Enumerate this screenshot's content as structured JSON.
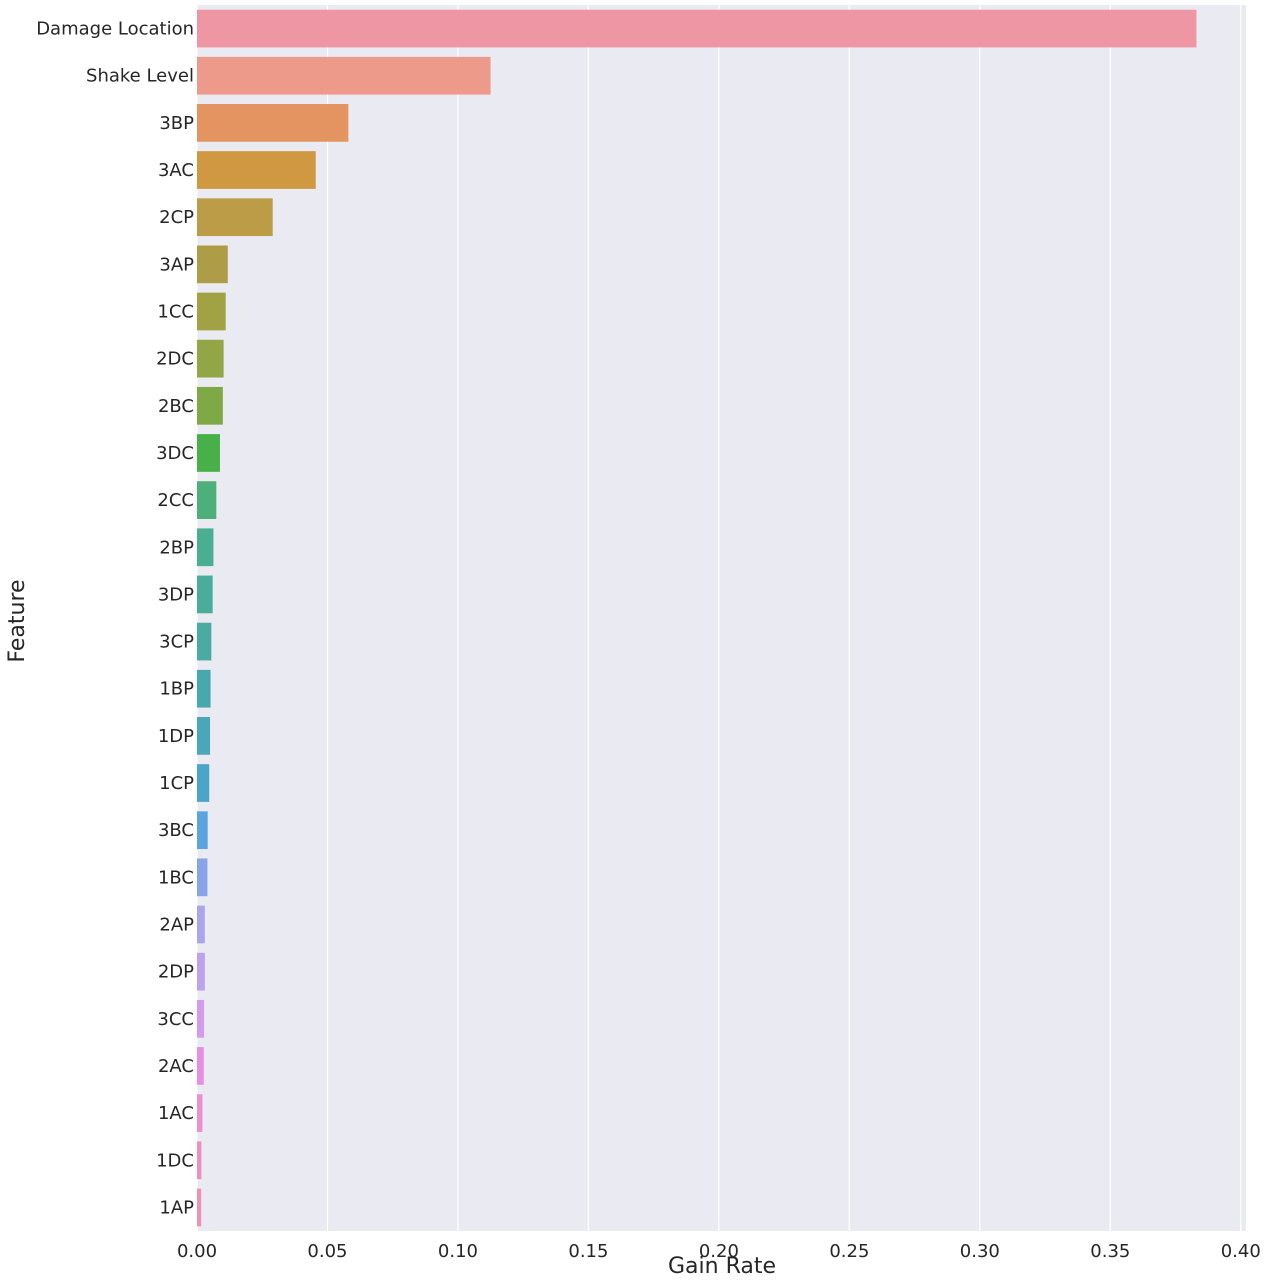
{
  "chart_data": {
    "type": "bar",
    "orientation": "horizontal",
    "title": "",
    "xlabel": "Gain Rate",
    "ylabel": "Feature",
    "xlim": [
      0,
      0.402
    ],
    "xticks": [
      0.0,
      0.05,
      0.1,
      0.15,
      0.2,
      0.25,
      0.3,
      0.35,
      0.4
    ],
    "xtick_labels": [
      "0.00",
      "0.05",
      "0.10",
      "0.15",
      "0.20",
      "0.25",
      "0.30",
      "0.35",
      "0.40"
    ],
    "grid": true,
    "categories": [
      "Damage Location",
      "Shake Level",
      "3BP",
      "3AC",
      "2CP",
      "3AP",
      "1CC",
      "2DC",
      "2BC",
      "3DC",
      "2CC",
      "2BP",
      "3DP",
      "3CP",
      "1BP",
      "1DP",
      "1CP",
      "3BC",
      "1BC",
      "2AP",
      "2DP",
      "3CC",
      "2AC",
      "1AC",
      "1DC",
      "1AP"
    ],
    "values": [
      0.383,
      0.1125,
      0.058,
      0.0455,
      0.029,
      0.0118,
      0.011,
      0.0102,
      0.0099,
      0.0088,
      0.0074,
      0.0063,
      0.006,
      0.0055,
      0.0052,
      0.005,
      0.0047,
      0.0041,
      0.004,
      0.003,
      0.003,
      0.0027,
      0.0026,
      0.0021,
      0.0017,
      0.0016
    ],
    "colors": [
      "#ee96a3",
      "#ed9a8a",
      "#e39461",
      "#cf9841",
      "#bc9c47",
      "#ae9c47",
      "#a0a244",
      "#92a645",
      "#7ea944",
      "#48b049",
      "#4daf79",
      "#4aae90",
      "#4aad99",
      "#49aba2",
      "#48a9ad",
      "#4aa7b9",
      "#4ca5c8",
      "#5aa5e0",
      "#8aa4e9",
      "#a9a6ee",
      "#bba3ee",
      "#d49aeb",
      "#e68fe3",
      "#ea91d0",
      "#ec90c2",
      "#ee92b5"
    ]
  }
}
